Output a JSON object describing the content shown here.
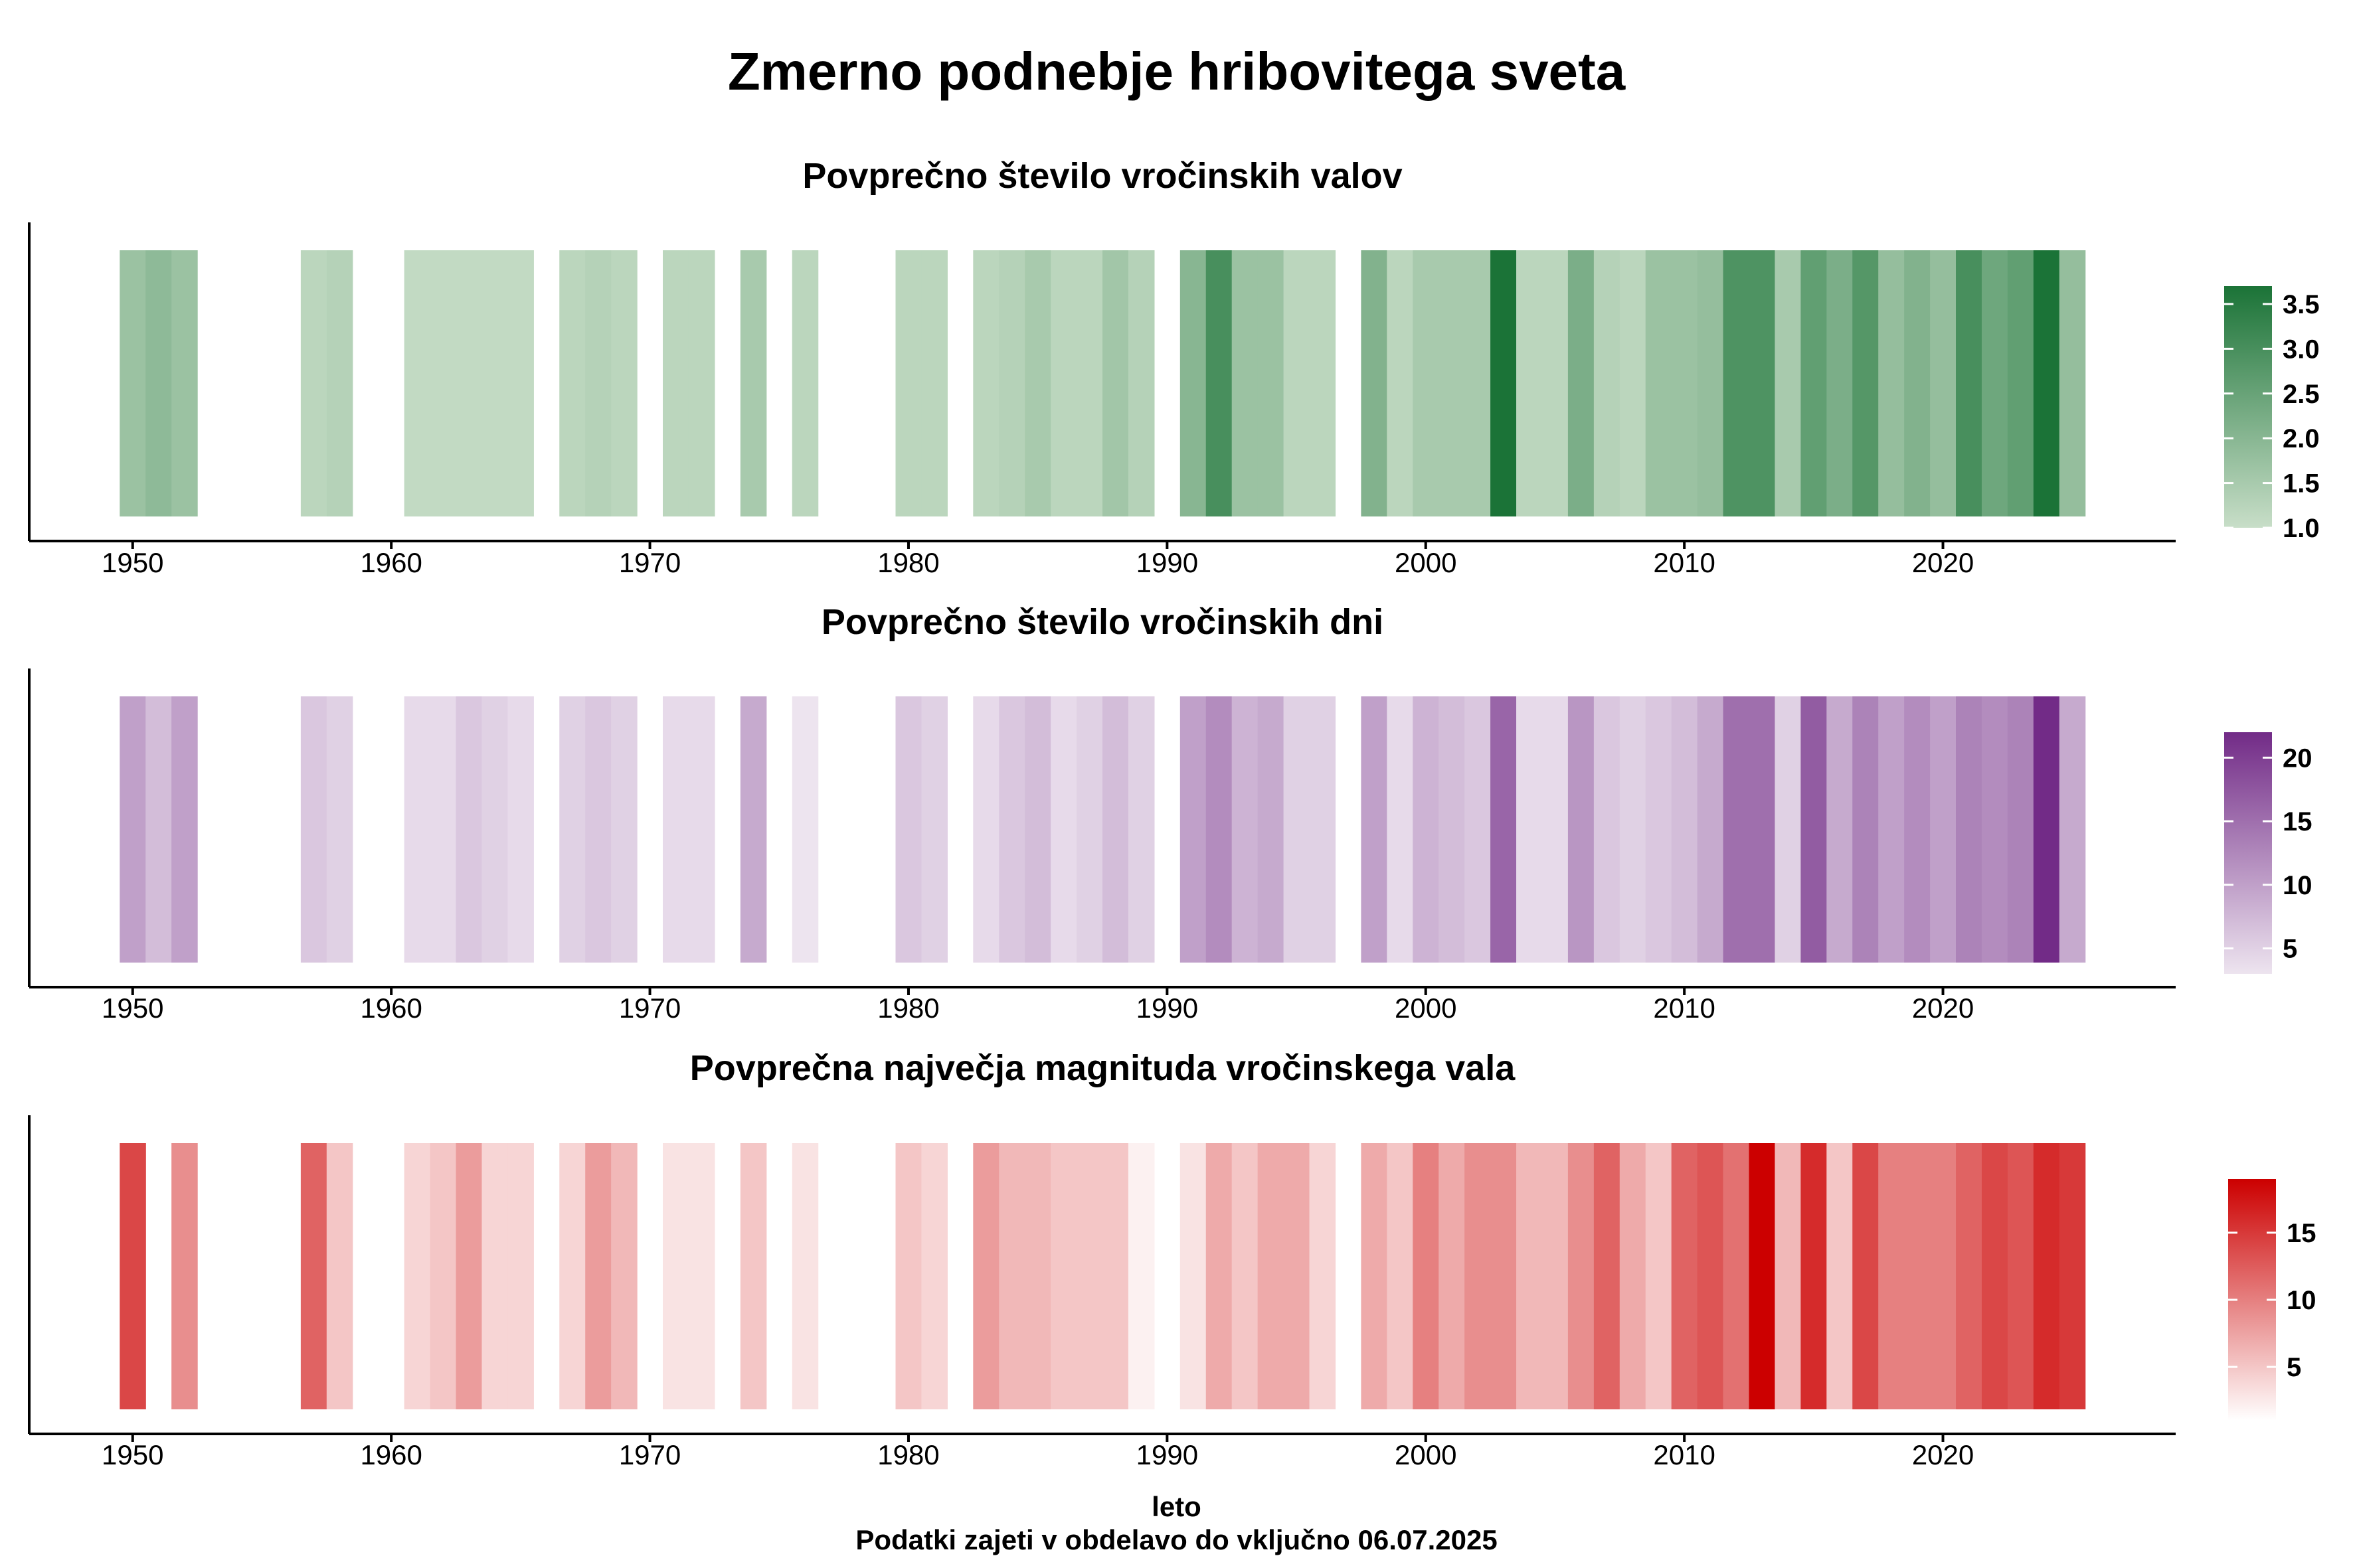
{
  "title": "Zmerno podnebje hribovitega sveta",
  "xlabel": "leto",
  "note": "Podatki zajeti v obdelavo do vključno 06.07.2025",
  "chart_data": [
    {
      "type": "heatmap",
      "title": "Povprečno število vročinskih valov",
      "xlim": [
        1946,
        2029
      ],
      "x_ticks": [
        1950,
        1960,
        1970,
        1980,
        1990,
        2000,
        2010,
        2020
      ],
      "legend": {
        "position": "right",
        "min": 1.0,
        "max": 3.7,
        "ticks": [
          "1.0",
          "1.5",
          "2.0",
          "2.5",
          "3.0",
          "3.5"
        ],
        "color_low": "#c8dec8",
        "color_high": "#1b7337"
      },
      "years": [
        1950,
        1951,
        1952,
        1957,
        1958,
        1961,
        1962,
        1963,
        1964,
        1965,
        1967,
        1968,
        1969,
        1971,
        1972,
        1974,
        1976,
        1980,
        1981,
        1983,
        1984,
        1985,
        1986,
        1987,
        1988,
        1989,
        1991,
        1992,
        1993,
        1994,
        1995,
        1996,
        1998,
        1999,
        2000,
        2001,
        2002,
        2003,
        2004,
        2005,
        2006,
        2007,
        2008,
        2009,
        2010,
        2011,
        2012,
        2013,
        2014,
        2015,
        2016,
        2017,
        2018,
        2019,
        2020,
        2021,
        2022,
        2023,
        2024,
        2025
      ],
      "values": [
        1.7,
        1.9,
        1.7,
        1.2,
        1.3,
        1.1,
        1.1,
        1.1,
        1.1,
        1.1,
        1.2,
        1.3,
        1.2,
        1.2,
        1.2,
        1.5,
        1.2,
        1.2,
        1.2,
        1.2,
        1.3,
        1.5,
        1.2,
        1.2,
        1.6,
        1.3,
        2.0,
        3.0,
        1.7,
        1.7,
        1.2,
        1.2,
        2.1,
        1.2,
        1.5,
        1.5,
        1.5,
        3.7,
        1.2,
        1.2,
        2.2,
        1.3,
        1.2,
        1.7,
        1.7,
        1.8,
        2.9,
        2.9,
        1.5,
        2.6,
        2.2,
        2.8,
        1.8,
        2.1,
        1.8,
        3.0,
        2.4,
        2.6,
        3.7,
        1.8
      ]
    },
    {
      "type": "heatmap",
      "title": "Povprečno število vročinskih dni",
      "xlim": [
        1946,
        2029
      ],
      "x_ticks": [
        1950,
        1960,
        1970,
        1980,
        1990,
        2000,
        2010,
        2020
      ],
      "legend": {
        "position": "right",
        "min": 3,
        "max": 22,
        "ticks": [
          "5",
          "10",
          "15",
          "20"
        ],
        "color_low": "#ede4ef",
        "color_high": "#722b87"
      },
      "years": [
        1950,
        1951,
        1952,
        1957,
        1958,
        1961,
        1962,
        1963,
        1964,
        1965,
        1967,
        1968,
        1969,
        1971,
        1972,
        1974,
        1976,
        1980,
        1981,
        1983,
        1984,
        1985,
        1986,
        1987,
        1988,
        1989,
        1991,
        1992,
        1993,
        1994,
        1995,
        1996,
        1998,
        1999,
        2000,
        2001,
        2002,
        2003,
        2004,
        2005,
        2006,
        2007,
        2008,
        2009,
        2010,
        2011,
        2012,
        2013,
        2014,
        2015,
        2016,
        2017,
        2018,
        2019,
        2020,
        2021,
        2022,
        2023,
        2024,
        2025
      ],
      "values": [
        10,
        7,
        10,
        6,
        5,
        4,
        4,
        6,
        5,
        4,
        5,
        6,
        5,
        4,
        4,
        9,
        3,
        6,
        5,
        4,
        6,
        7,
        4,
        5,
        7,
        5,
        10,
        12,
        8,
        9,
        5,
        5,
        10,
        4,
        8,
        7,
        6,
        16,
        4,
        4,
        11,
        6,
        5,
        6,
        7,
        9,
        15,
        15,
        5,
        17,
        9,
        13,
        10,
        12,
        10,
        13,
        12,
        13,
        22,
        9
      ]
    },
    {
      "type": "heatmap",
      "title": "Povprečna največja magnituda vročinskega vala",
      "xlim": [
        1946,
        2029
      ],
      "x_ticks": [
        1950,
        1960,
        1970,
        1980,
        1990,
        2000,
        2010,
        2020
      ],
      "legend": {
        "position": "right",
        "min": 1,
        "max": 19,
        "ticks": [
          "5",
          "10",
          "15"
        ],
        "color_low": "#ffffff",
        "color_high": "#cc0000"
      },
      "years": [
        1950,
        1952,
        1957,
        1958,
        1961,
        1962,
        1963,
        1964,
        1965,
        1967,
        1968,
        1969,
        1971,
        1972,
        1974,
        1976,
        1980,
        1981,
        1983,
        1984,
        1985,
        1986,
        1987,
        1988,
        1989,
        1991,
        1992,
        1993,
        1994,
        1995,
        1996,
        1998,
        1999,
        2000,
        2001,
        2002,
        2003,
        2004,
        2005,
        2006,
        2007,
        2008,
        2009,
        2010,
        2011,
        2012,
        2013,
        2014,
        2015,
        2016,
        2017,
        2018,
        2019,
        2020,
        2021,
        2022,
        2023,
        2024,
        2025
      ],
      "values": [
        14,
        9,
        12,
        5,
        4,
        5,
        8,
        4,
        4,
        4,
        8,
        6,
        3,
        3,
        5,
        3,
        5,
        4,
        8,
        6,
        6,
        5,
        5,
        5,
        2,
        3,
        7,
        5,
        7,
        7,
        4,
        7,
        5,
        10,
        7,
        9,
        9,
        6,
        6,
        9,
        12,
        7,
        5,
        12,
        13,
        11,
        19,
        6,
        16,
        5,
        14,
        10,
        10,
        10,
        12,
        14,
        13,
        16,
        15
      ]
    }
  ]
}
